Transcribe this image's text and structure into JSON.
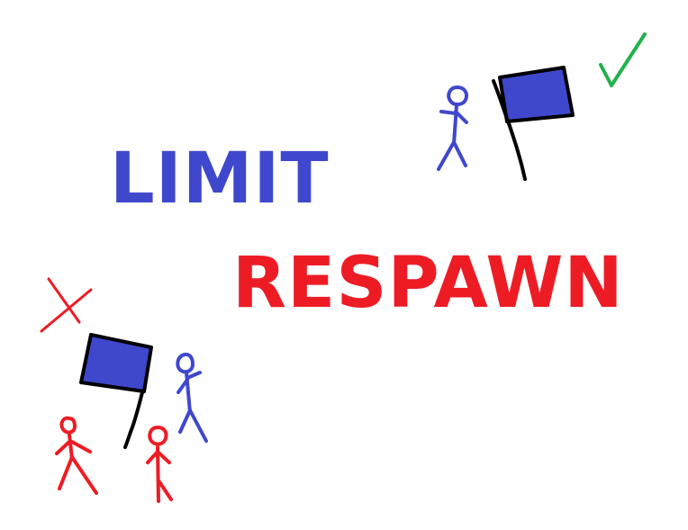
{
  "text": {
    "line1": "LIMIT",
    "line2": "RESPAWN"
  },
  "colors": {
    "blue_text": "#3f48cc",
    "red_text": "#ed1c24",
    "flag_fill": "#3f48cc",
    "flag_outline": "#000000",
    "blue_figure": "#3f48cc",
    "red_figure": "#ed1c24",
    "check_mark": "#22b14c",
    "cross_mark": "#ed1c24",
    "background": "#ffffff"
  },
  "icons": {
    "top_right": [
      "stick-figure-blue",
      "flag-blue",
      "check-mark"
    ],
    "bottom_left": [
      "cross-mark",
      "flag-blue",
      "stick-figure-blue",
      "stick-figure-red",
      "stick-figure-red"
    ]
  }
}
